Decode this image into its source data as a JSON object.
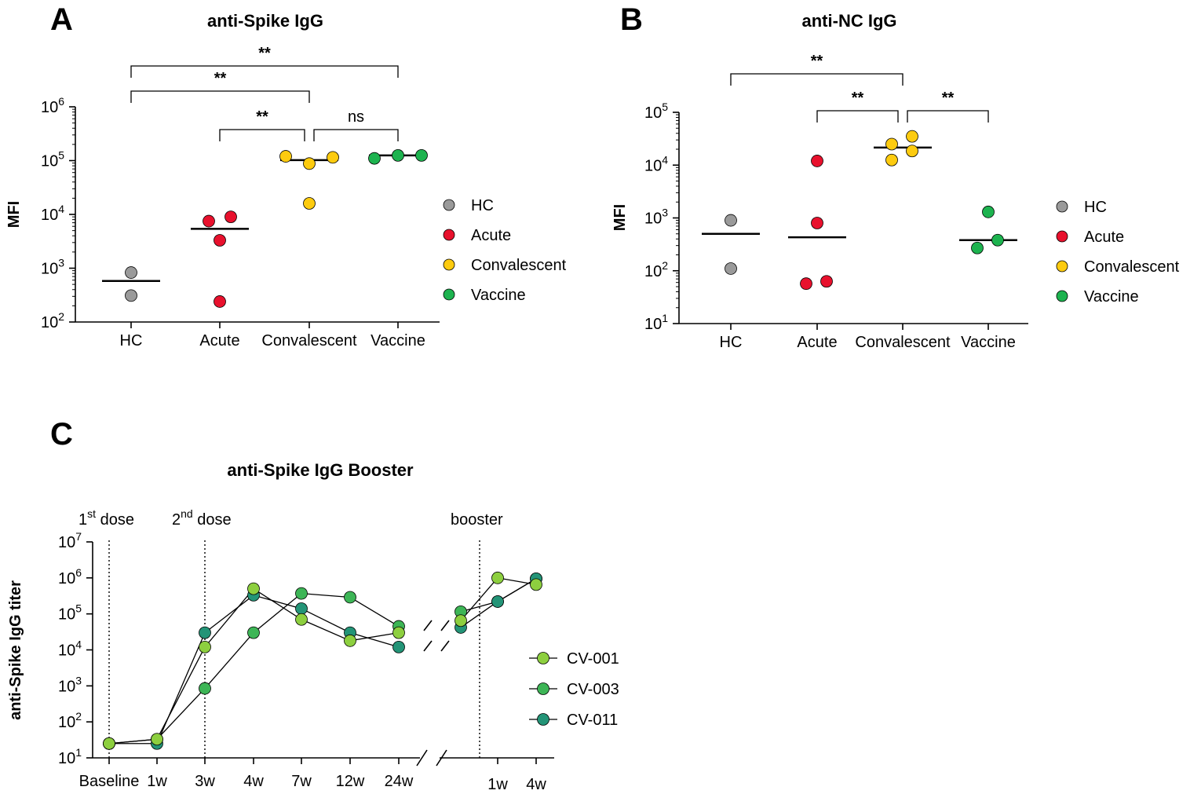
{
  "chart_data": [
    {
      "panel": "A",
      "type": "scatter",
      "title": "anti-Spike IgG",
      "ylabel": "MFI",
      "xlabel": "",
      "yscale": "log",
      "ylim": [
        100,
        1000000
      ],
      "yticks": [
        "10",
        "10",
        "10",
        "10",
        "10"
      ],
      "ytick_exponents": [
        "2",
        "3",
        "4",
        "5",
        "6"
      ],
      "categories": [
        "HC",
        "Acute",
        "Convalescent",
        "Vaccine"
      ],
      "series": [
        {
          "name": "HC",
          "color": "#9a9a9a",
          "values": [
            830,
            310
          ],
          "median": 580
        },
        {
          "name": "Acute",
          "color": "#e8112d",
          "values": [
            7500,
            9000,
            3300,
            240
          ],
          "median": 5400
        },
        {
          "name": "Convalescent",
          "color": "#fdcb0f",
          "values": [
            120000,
            88000,
            115000,
            16000
          ],
          "median": 102000
        },
        {
          "name": "Vaccine",
          "color": "#1db34f",
          "values": [
            110000,
            125000,
            125000
          ],
          "median": 125000
        }
      ],
      "comparisons": [
        {
          "from": "HC",
          "to": "Vaccine",
          "label": "**"
        },
        {
          "from": "HC",
          "to": "Convalescent",
          "label": "**"
        },
        {
          "from": "Acute",
          "to": "Convalescent",
          "label": "**"
        },
        {
          "from": "Convalescent",
          "to": "Vaccine",
          "label": "ns"
        }
      ],
      "legend": [
        "HC",
        "Acute",
        "Convalescent",
        "Vaccine"
      ],
      "legend_position": "right",
      "grid": false
    },
    {
      "panel": "B",
      "type": "scatter",
      "title": "anti-NC IgG",
      "ylabel": "MFI",
      "xlabel": "",
      "yscale": "log",
      "ylim": [
        10,
        100000
      ],
      "yticks": [
        "10",
        "10",
        "10",
        "10",
        "10"
      ],
      "ytick_exponents": [
        "1",
        "2",
        "3",
        "4",
        "5"
      ],
      "categories": [
        "HC",
        "Acute",
        "Convalescent",
        "Vaccine"
      ],
      "series": [
        {
          "name": "HC",
          "color": "#9a9a9a",
          "values": [
            900,
            110
          ],
          "median": 500
        },
        {
          "name": "Acute",
          "color": "#e8112d",
          "values": [
            12000,
            800,
            57,
            63
          ],
          "median": 430
        },
        {
          "name": "Convalescent",
          "color": "#fdcb0f",
          "values": [
            25000,
            35000,
            12500,
            18500
          ],
          "median": 21500
        },
        {
          "name": "Vaccine",
          "color": "#1db34f",
          "values": [
            1300,
            270,
            380
          ],
          "median": 380
        }
      ],
      "comparisons": [
        {
          "from": "HC",
          "to": "Convalescent",
          "label": "**"
        },
        {
          "from": "Acute",
          "to": "Convalescent",
          "label": "**"
        },
        {
          "from": "Convalescent",
          "to": "Vaccine",
          "label": "**"
        }
      ],
      "legend": [
        "HC",
        "Acute",
        "Convalescent",
        "Vaccine"
      ],
      "legend_position": "right",
      "grid": false
    },
    {
      "panel": "C",
      "type": "line",
      "title": "anti-Spike IgG Booster",
      "ylabel": "anti-Spike IgG titer",
      "xlabel": "",
      "yscale": "log",
      "ylim": [
        10,
        10000000
      ],
      "yticks": [
        "10",
        "10",
        "10",
        "10",
        "10",
        "10",
        "10"
      ],
      "ytick_exponents": [
        "1",
        "2",
        "3",
        "4",
        "5",
        "6",
        "7"
      ],
      "x_segment1": [
        "Baseline",
        "1w",
        "3w",
        "4w",
        "7w",
        "12w",
        "24w"
      ],
      "x_segment2": [
        "1w",
        "4w"
      ],
      "axis_break": true,
      "events": [
        {
          "label": "1",
          "sup": "st",
          "rest": " dose",
          "at": "Baseline"
        },
        {
          "label": "2",
          "sup": "nd",
          "rest": " dose",
          "at": "3w"
        },
        {
          "label": "booster",
          "sup": "",
          "rest": "",
          "at": "pre-booster"
        }
      ],
      "series": [
        {
          "name": "CV-001",
          "color": "#8dcf3f",
          "segment1": [
            25,
            33,
            12000,
            500000,
            70000,
            18000,
            30000
          ],
          "segment2": [
            65000,
            1000000,
            650000
          ]
        },
        {
          "name": "CV-003",
          "color": "#3db556",
          "segment1": [
            25,
            33,
            850,
            30000,
            370000,
            290000,
            45000
          ],
          "segment2": [
            115000,
            220000,
            950000
          ]
        },
        {
          "name": "CV-011",
          "color": "#239477",
          "segment1": [
            25,
            25,
            30000,
            330000,
            140000,
            30000,
            12000
          ],
          "segment2": [
            42000,
            220000,
            950000
          ]
        }
      ],
      "legend": [
        "CV-001",
        "CV-003",
        "CV-011"
      ],
      "legend_position": "right",
      "grid": false
    }
  ],
  "panels": {
    "A": {
      "letter": "A"
    },
    "B": {
      "letter": "B"
    },
    "C": {
      "letter": "C"
    }
  }
}
